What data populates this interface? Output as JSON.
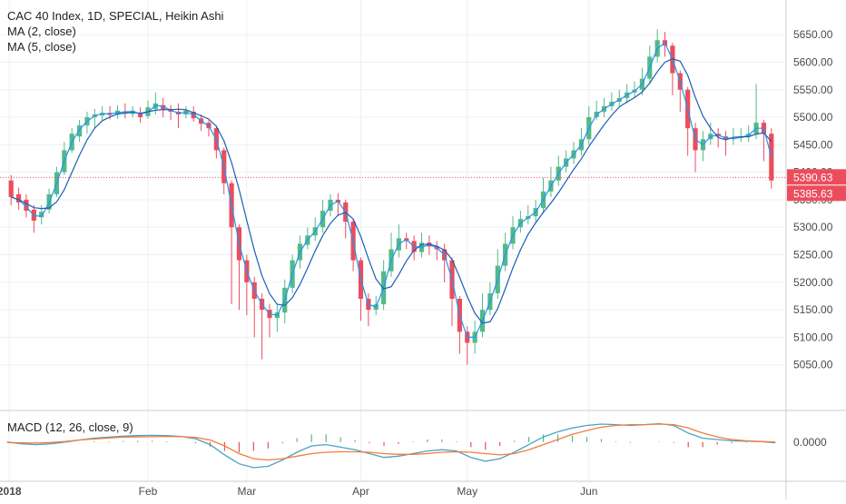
{
  "chart_data": {
    "type": "candlestick",
    "title": "CAC 40 Index, 1D, SPECIAL, Heikin Ashi",
    "indicators": [
      "MA (2, close)",
      "MA (5, close)"
    ],
    "main_axis": {
      "ylim": [
        5000,
        5680
      ],
      "ticks": [
        "5650.00",
        "5600.00",
        "5550.00",
        "5500.00",
        "5450.00",
        "5400.00",
        "5350.00",
        "5300.00",
        "5250.00",
        "5200.00",
        "5150.00",
        "5100.00",
        "5050.00"
      ]
    },
    "last_price_labels": [
      {
        "text": "5390.63",
        "value": 5390.63
      },
      {
        "text": "5385.63",
        "value": 5385.63
      }
    ],
    "x_labels": [
      "2018",
      "Feb",
      "Mar",
      "Apr",
      "May",
      "Jun"
    ],
    "candles": [
      [
        5385,
        5355,
        5395,
        5340
      ],
      [
        5360,
        5345,
        5372,
        5332
      ],
      [
        5350,
        5330,
        5360,
        5318
      ],
      [
        5332,
        5312,
        5340,
        5290
      ],
      [
        5318,
        5328,
        5340,
        5305
      ],
      [
        5332,
        5360,
        5370,
        5325
      ],
      [
        5360,
        5400,
        5410,
        5355
      ],
      [
        5400,
        5440,
        5455,
        5395
      ],
      [
        5440,
        5470,
        5480,
        5435
      ],
      [
        5465,
        5485,
        5495,
        5455
      ],
      [
        5485,
        5500,
        5510,
        5470
      ],
      [
        5500,
        5505,
        5515,
        5480
      ],
      [
        5503,
        5508,
        5520,
        5495
      ],
      [
        5508,
        5504,
        5520,
        5496
      ],
      [
        5505,
        5512,
        5522,
        5497
      ],
      [
        5510,
        5508,
        5525,
        5498
      ],
      [
        5506,
        5512,
        5520,
        5500
      ],
      [
        5508,
        5500,
        5518,
        5490
      ],
      [
        5502,
        5518,
        5530,
        5497
      ],
      [
        5515,
        5525,
        5545,
        5505
      ],
      [
        5522,
        5515,
        5535,
        5500
      ],
      [
        5515,
        5510,
        5522,
        5495
      ],
      [
        5510,
        5505,
        5525,
        5480
      ],
      [
        5505,
        5512,
        5520,
        5498
      ],
      [
        5510,
        5498,
        5520,
        5492
      ],
      [
        5498,
        5488,
        5505,
        5475
      ],
      [
        5490,
        5480,
        5495,
        5465
      ],
      [
        5480,
        5440,
        5485,
        5425
      ],
      [
        5440,
        5380,
        5445,
        5360
      ],
      [
        5380,
        5300,
        5385,
        5160
      ],
      [
        5300,
        5240,
        5305,
        5150
      ],
      [
        5240,
        5200,
        5250,
        5140
      ],
      [
        5200,
        5170,
        5210,
        5100
      ],
      [
        5170,
        5150,
        5180,
        5060
      ],
      [
        5150,
        5135,
        5160,
        5100
      ],
      [
        5135,
        5145,
        5160,
        5110
      ],
      [
        5145,
        5190,
        5205,
        5125
      ],
      [
        5190,
        5240,
        5250,
        5180
      ],
      [
        5240,
        5270,
        5285,
        5225
      ],
      [
        5268,
        5285,
        5300,
        5260
      ],
      [
        5285,
        5300,
        5318,
        5275
      ],
      [
        5300,
        5330,
        5350,
        5290
      ],
      [
        5330,
        5350,
        5360,
        5320
      ],
      [
        5350,
        5345,
        5362,
        5320
      ],
      [
        5345,
        5310,
        5350,
        5280
      ],
      [
        5310,
        5240,
        5315,
        5220
      ],
      [
        5240,
        5170,
        5245,
        5130
      ],
      [
        5170,
        5150,
        5180,
        5120
      ],
      [
        5150,
        5160,
        5175,
        5140
      ],
      [
        5160,
        5220,
        5240,
        5150
      ],
      [
        5220,
        5260,
        5290,
        5210
      ],
      [
        5258,
        5280,
        5305,
        5245
      ],
      [
        5280,
        5275,
        5290,
        5260
      ],
      [
        5275,
        5255,
        5285,
        5240
      ],
      [
        5255,
        5272,
        5290,
        5245
      ],
      [
        5272,
        5265,
        5285,
        5250
      ],
      [
        5265,
        5260,
        5275,
        5240
      ],
      [
        5260,
        5240,
        5270,
        5200
      ],
      [
        5240,
        5170,
        5245,
        5120
      ],
      [
        5170,
        5110,
        5175,
        5070
      ],
      [
        5110,
        5090,
        5120,
        5050
      ],
      [
        5090,
        5110,
        5130,
        5070
      ],
      [
        5110,
        5150,
        5180,
        5100
      ],
      [
        5150,
        5180,
        5200,
        5140
      ],
      [
        5180,
        5230,
        5260,
        5170
      ],
      [
        5230,
        5270,
        5290,
        5220
      ],
      [
        5270,
        5300,
        5320,
        5260
      ],
      [
        5300,
        5315,
        5330,
        5290
      ],
      [
        5315,
        5320,
        5340,
        5305
      ],
      [
        5320,
        5335,
        5350,
        5310
      ],
      [
        5335,
        5365,
        5390,
        5325
      ],
      [
        5365,
        5385,
        5410,
        5355
      ],
      [
        5385,
        5410,
        5430,
        5375
      ],
      [
        5410,
        5425,
        5440,
        5400
      ],
      [
        5425,
        5440,
        5455,
        5415
      ],
      [
        5440,
        5460,
        5480,
        5430
      ],
      [
        5460,
        5500,
        5520,
        5450
      ],
      [
        5500,
        5510,
        5530,
        5495
      ],
      [
        5510,
        5520,
        5535,
        5500
      ],
      [
        5520,
        5528,
        5545,
        5512
      ],
      [
        5528,
        5535,
        5550,
        5520
      ],
      [
        5535,
        5545,
        5560,
        5525
      ],
      [
        5545,
        5550,
        5565,
        5535
      ],
      [
        5550,
        5570,
        5590,
        5540
      ],
      [
        5570,
        5610,
        5630,
        5560
      ],
      [
        5610,
        5640,
        5660,
        5600
      ],
      [
        5640,
        5630,
        5655,
        5610
      ],
      [
        5630,
        5580,
        5635,
        5540
      ],
      [
        5580,
        5550,
        5585,
        5510
      ],
      [
        5550,
        5480,
        5555,
        5430
      ],
      [
        5480,
        5440,
        5490,
        5400
      ],
      [
        5440,
        5460,
        5475,
        5420
      ],
      [
        5460,
        5470,
        5490,
        5450
      ],
      [
        5470,
        5465,
        5480,
        5445
      ],
      [
        5465,
        5460,
        5475,
        5430
      ],
      [
        5460,
        5462,
        5480,
        5450
      ],
      [
        5462,
        5465,
        5480,
        5455
      ],
      [
        5465,
        5470,
        5485,
        5455
      ],
      [
        5470,
        5490,
        5560,
        5460
      ],
      [
        5490,
        5470,
        5495,
        5420
      ],
      [
        5470,
        5385,
        5480,
        5370
      ]
    ],
    "macd": {
      "label": "MACD (12, 26, close, 9)",
      "ylim": [
        -0.0125,
        0.0095
      ],
      "tick": "0.0000",
      "macd_line": [
        0.0,
        -0.0007,
        -0.001,
        -0.0007,
        0.0,
        0.0008,
        0.0015,
        0.0019,
        0.0023,
        0.0025,
        0.0026,
        0.0025,
        0.0022,
        0.0013,
        -0.001,
        -0.005,
        -0.0085,
        -0.01,
        -0.0095,
        -0.007,
        -0.004,
        -0.0015,
        -0.001,
        -0.002,
        -0.003,
        -0.0045,
        -0.006,
        -0.0055,
        -0.0045,
        -0.0035,
        -0.003,
        -0.0035,
        -0.006,
        -0.0075,
        -0.0065,
        -0.004,
        -0.001,
        0.002,
        0.004,
        0.0055,
        0.0065,
        0.007,
        0.0068,
        0.0065,
        0.0068,
        0.0072,
        0.0065,
        0.0035,
        0.0015,
        0.001,
        0.0005,
        0.0003,
        0.0002,
        -0.0003
      ],
      "signal_line": [
        -0.0002,
        -0.0003,
        -0.0004,
        -0.0002,
        0.0002,
        0.0008,
        0.0012,
        0.0016,
        0.0019,
        0.002,
        0.0021,
        0.0022,
        0.0021,
        0.0018,
        0.0008,
        -0.0015,
        -0.0045,
        -0.0065,
        -0.007,
        -0.0065,
        -0.0055,
        -0.0045,
        -0.004,
        -0.0038,
        -0.0038,
        -0.004,
        -0.0045,
        -0.0048,
        -0.0048,
        -0.0045,
        -0.004,
        -0.0038,
        -0.004,
        -0.0045,
        -0.005,
        -0.0045,
        -0.003,
        -0.001,
        0.001,
        0.003,
        0.0045,
        0.0058,
        0.0065,
        0.0068,
        0.0068,
        0.007,
        0.0068,
        0.0055,
        0.0035,
        0.002,
        0.001,
        0.0005,
        0.0002,
        0.0
      ]
    }
  },
  "colors": {
    "up": "#53b987",
    "down": "#eb4d5c",
    "ma2": "#2196f3",
    "ma5": "#1a5fb4",
    "macd": "#4aa3c4",
    "signal": "#f47c3c",
    "price_line": "#eb4d5c"
  }
}
